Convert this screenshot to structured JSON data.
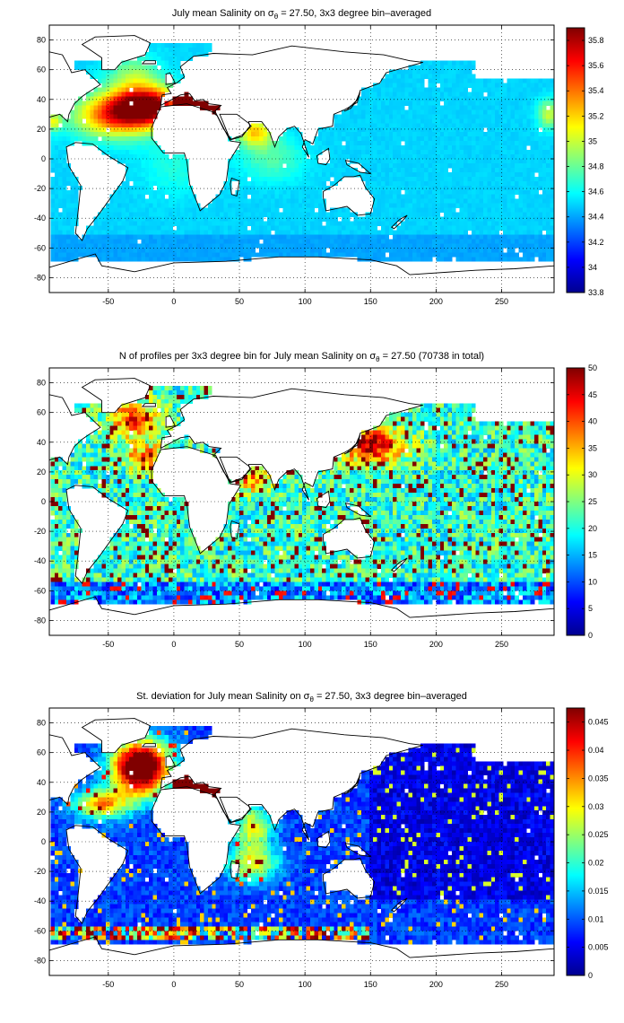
{
  "chart_data": [
    {
      "type": "heatmap",
      "title_prefix": "July mean Salinity on σ",
      "title_sub": "θ",
      "title_suffix": " = 27.50, 3x3 degree bin–averaged",
      "xlim": [
        -95,
        290
      ],
      "ylim": [
        -90,
        90
      ],
      "xticks": [
        -50,
        0,
        50,
        100,
        150,
        200,
        250
      ],
      "yticks": [
        80,
        60,
        40,
        20,
        0,
        -20,
        -40,
        -60,
        -80
      ],
      "grid": true,
      "colorbar": {
        "ticks": [
          "35.8",
          "35.6",
          "35.4",
          "35.2",
          "35",
          "34.8",
          "34.6",
          "34.4",
          "34.2",
          "34",
          "33.8"
        ],
        "range": [
          33.8,
          35.9
        ]
      },
      "field_description": "Bin-averaged salinity; highest values (~35.9) in Mediterranean outflow region near 35N, 15W; ~34.5 across most of Pacific and Southern Ocean",
      "colormap": "jet"
    },
    {
      "type": "heatmap",
      "title_prefix": "N of profiles per 3x3 degree bin for July mean Salinity on σ",
      "title_sub": "θ",
      "title_suffix": " = 27.50 (70738 in total)",
      "xlim": [
        -95,
        290
      ],
      "ylim": [
        -90,
        90
      ],
      "xticks": [
        -50,
        0,
        50,
        100,
        150,
        200,
        250
      ],
      "yticks": [
        80,
        60,
        40,
        20,
        0,
        -20,
        -40,
        -60,
        -80
      ],
      "grid": true,
      "colorbar": {
        "ticks": [
          "50",
          "45",
          "40",
          "35",
          "30",
          "25",
          "20",
          "15",
          "10",
          "5",
          "0"
        ],
        "range": [
          0,
          50
        ]
      },
      "colormap": "jet"
    },
    {
      "type": "heatmap",
      "title_prefix": "St. deviation for July mean Salinity on σ",
      "title_sub": "θ",
      "title_suffix": " = 27.50, 3x3 degree bin–averaged",
      "xlim": [
        -95,
        290
      ],
      "ylim": [
        -90,
        90
      ],
      "xticks": [
        -50,
        0,
        50,
        100,
        150,
        200,
        250
      ],
      "yticks": [
        80,
        60,
        40,
        20,
        0,
        -20,
        -40,
        -60,
        -80
      ],
      "grid": true,
      "colorbar": {
        "ticks": [
          "0.045",
          "0.04",
          "0.035",
          "0.03",
          "0.025",
          "0.02",
          "0.015",
          "0.01",
          "0.005",
          "0"
        ],
        "range": [
          0,
          0.0475
        ]
      },
      "colormap": "jet"
    }
  ]
}
